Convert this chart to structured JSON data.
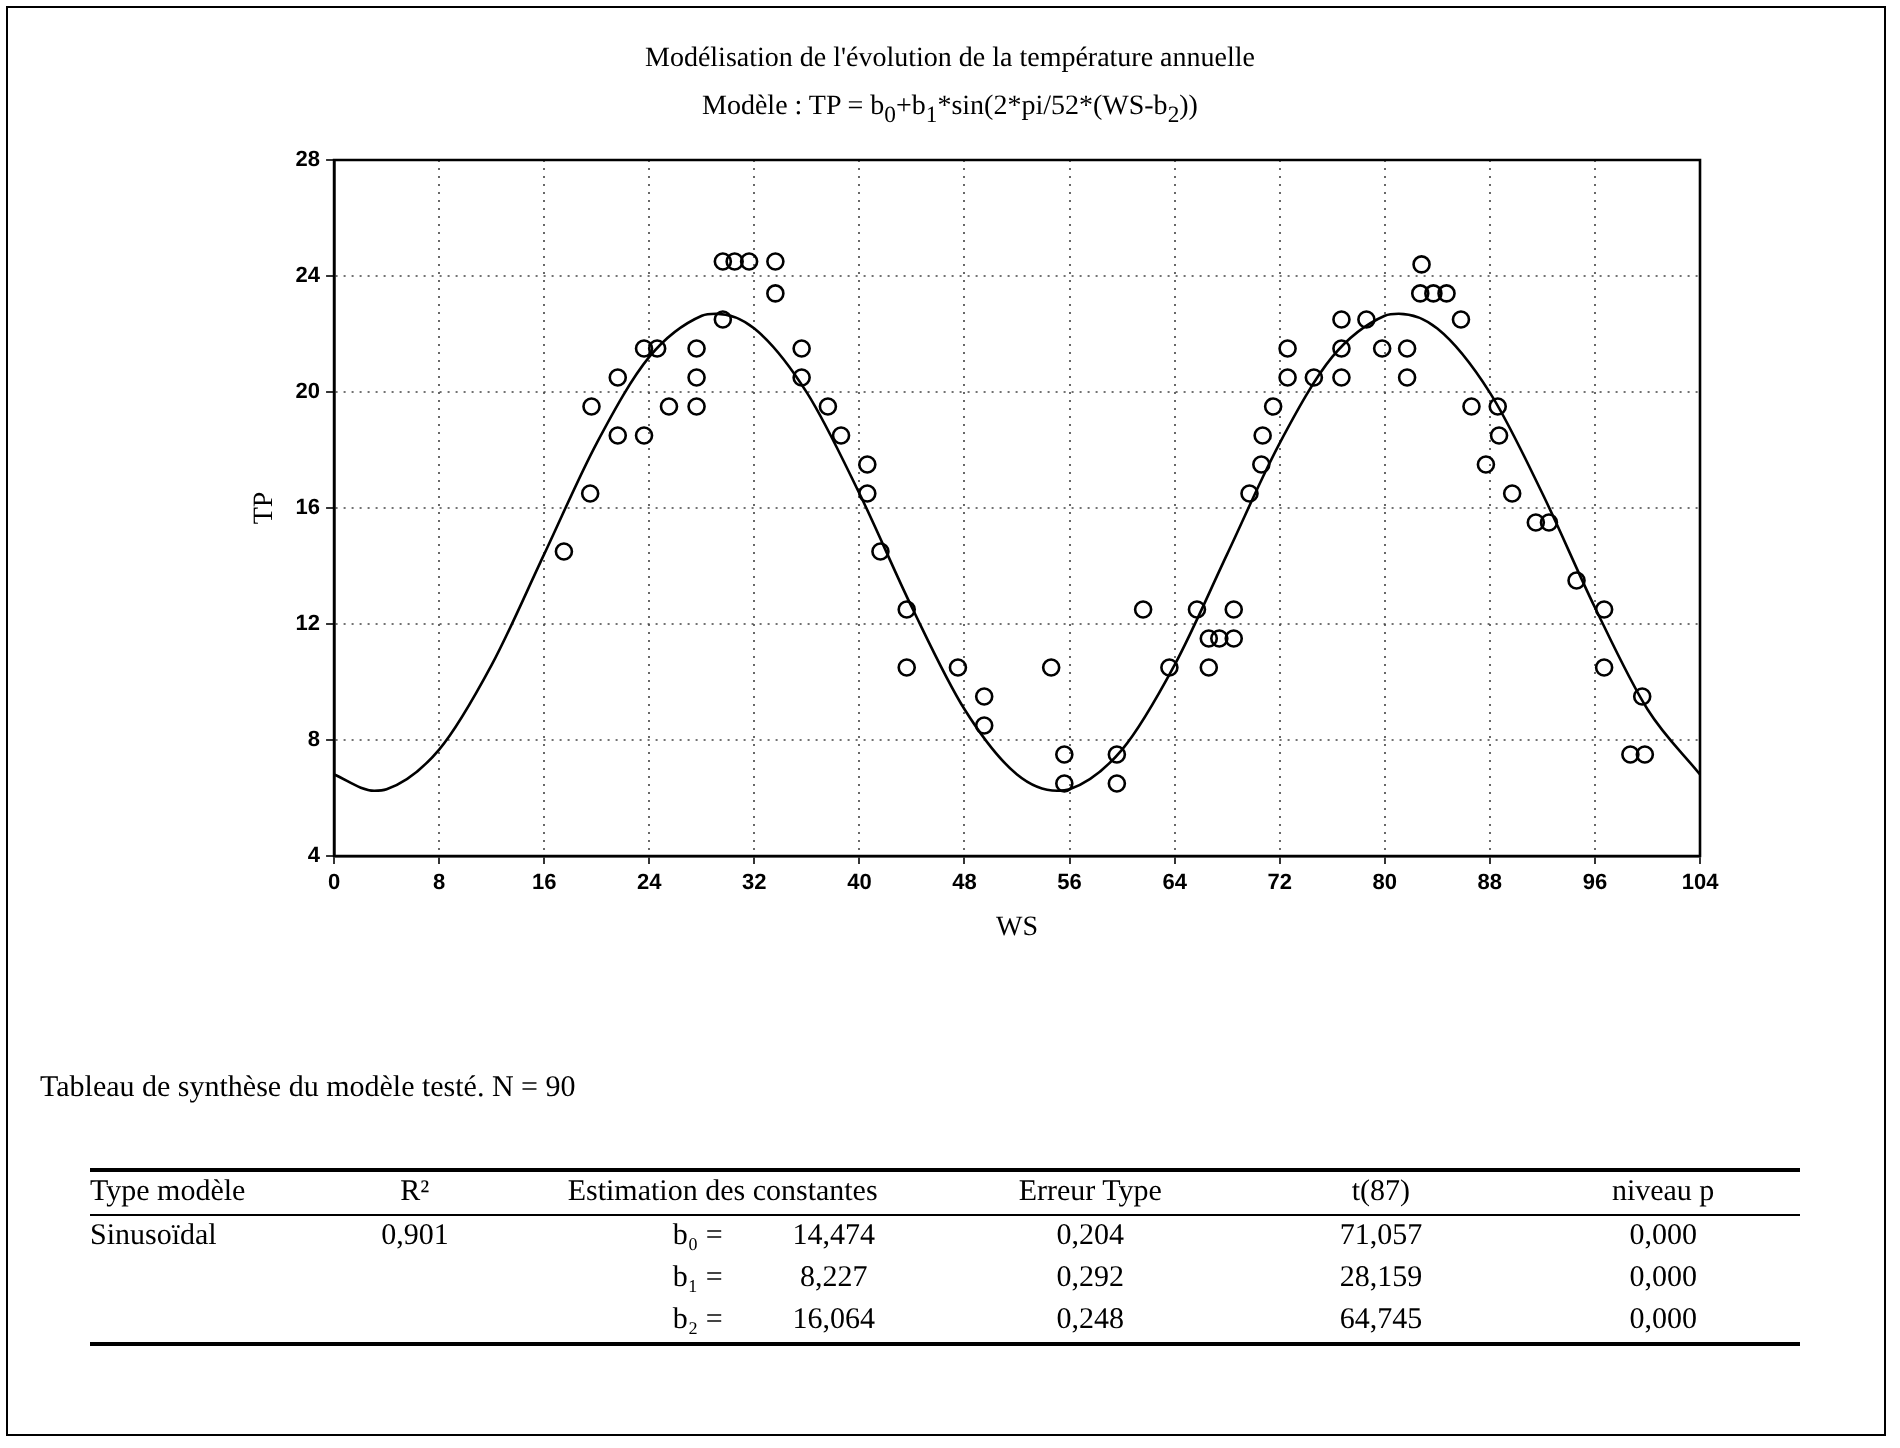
{
  "chart_data": [
    {
      "type": "scatter",
      "title": "Modélisation de l'évolution de la température annuelle",
      "subtitle": "Modèle : TP = b$_{0}$+b$_{1}$*sin(2*pi/52*(WS-b$_{2}$))",
      "xlabel": "WS",
      "ylabel": "TP",
      "xlim": [
        0,
        104
      ],
      "xticks": [
        0,
        8,
        16,
        24,
        32,
        40,
        48,
        56,
        64,
        72,
        80,
        88,
        96,
        104
      ],
      "ylim": [
        4,
        28
      ],
      "yticks": [
        4,
        8,
        12,
        16,
        20,
        24,
        28
      ],
      "grid": true,
      "marker": "circle",
      "series": [
        {
          "type": "scatter",
          "color": "#000000",
          "x": [
            17.5,
            19.5,
            19.6,
            21.6,
            21.6,
            23.6,
            23.6,
            24.6,
            25.5,
            27.6,
            27.6,
            27.6,
            29.6,
            30.5,
            31.6,
            29.6,
            33.6,
            33.6,
            35.6,
            35.6,
            37.6,
            38.6,
            40.6,
            40.6,
            41.6,
            43.6,
            43.6,
            47.5,
            49.5,
            49.5,
            54.6,
            55.6,
            55.6,
            59.6,
            59.6,
            61.6,
            63.6,
            65.7,
            66.6,
            67.4,
            68.5,
            66.6,
            68.5,
            69.7,
            70.6,
            70.7,
            71.5,
            72.6,
            72.6,
            74.6,
            76.7,
            76.7,
            76.7,
            78.6,
            79.8,
            81.7,
            81.7,
            82.8,
            82.7,
            83.7,
            84.7,
            85.8,
            86.6,
            88.6,
            88.7,
            87.7,
            89.7,
            91.5,
            92.5,
            94.6,
            96.7,
            96.7,
            99.6,
            98.7,
            99.8
          ],
          "values": [
            14.5,
            16.5,
            19.5,
            20.5,
            18.5,
            18.5,
            21.5,
            21.5,
            19.5,
            21.5,
            20.5,
            19.5,
            24.5,
            24.5,
            24.5,
            22.5,
            24.5,
            23.4,
            21.5,
            20.5,
            19.5,
            18.5,
            17.5,
            16.5,
            14.5,
            12.5,
            10.5,
            10.5,
            9.5,
            8.5,
            10.5,
            7.5,
            6.5,
            7.5,
            6.5,
            12.5,
            10.5,
            12.5,
            11.5,
            11.5,
            11.5,
            10.5,
            12.5,
            16.5,
            17.5,
            18.5,
            19.5,
            20.5,
            21.5,
            20.5,
            20.5,
            21.5,
            22.5,
            22.5,
            21.5,
            21.5,
            20.5,
            24.4,
            23.4,
            23.4,
            23.4,
            22.5,
            19.5,
            19.5,
            18.5,
            17.5,
            16.5,
            15.5,
            15.5,
            13.5,
            12.5,
            10.5,
            9.5,
            7.5,
            7.5
          ]
        },
        {
          "type": "line",
          "color": "#000000",
          "marker": "none",
          "x": [
            0,
            3.06,
            4,
            8,
            12,
            16,
            20,
            24,
            28,
            29.06,
            32,
            36,
            40,
            44,
            48,
            52,
            55.06,
            56,
            60,
            64,
            68,
            72,
            76,
            80,
            81.06,
            84,
            88,
            92,
            96,
            100,
            104
          ],
          "values": [
            6.81,
            6.25,
            6.3,
            7.67,
            10.59,
            14.41,
            18.24,
            21.21,
            22.63,
            22.7,
            22.19,
            19.98,
            16.5,
            12.57,
            9.06,
            6.81,
            6.25,
            6.3,
            7.67,
            10.59,
            14.41,
            18.24,
            21.21,
            22.63,
            22.7,
            22.19,
            19.98,
            16.5,
            12.57,
            9.06,
            6.81
          ]
        }
      ]
    },
    {
      "type": "other",
      "title": "Tableau de synthèse du modèle testé. N = 90",
      "annotations": [
        "Type modèle",
        "R²",
        "Estimation des constantes",
        "Erreur Type",
        "t(87)",
        "niveau p",
        "Sinusoïdal",
        "0,901",
        "b₀ =",
        "14,474",
        "0,204",
        "71,057",
        "0,000",
        "b₁ =",
        "8,227",
        "0,292",
        "28,159",
        "0,000",
        "b₂ =",
        "16,064",
        "0,248",
        "64,745",
        "0,000"
      ]
    }
  ]
}
